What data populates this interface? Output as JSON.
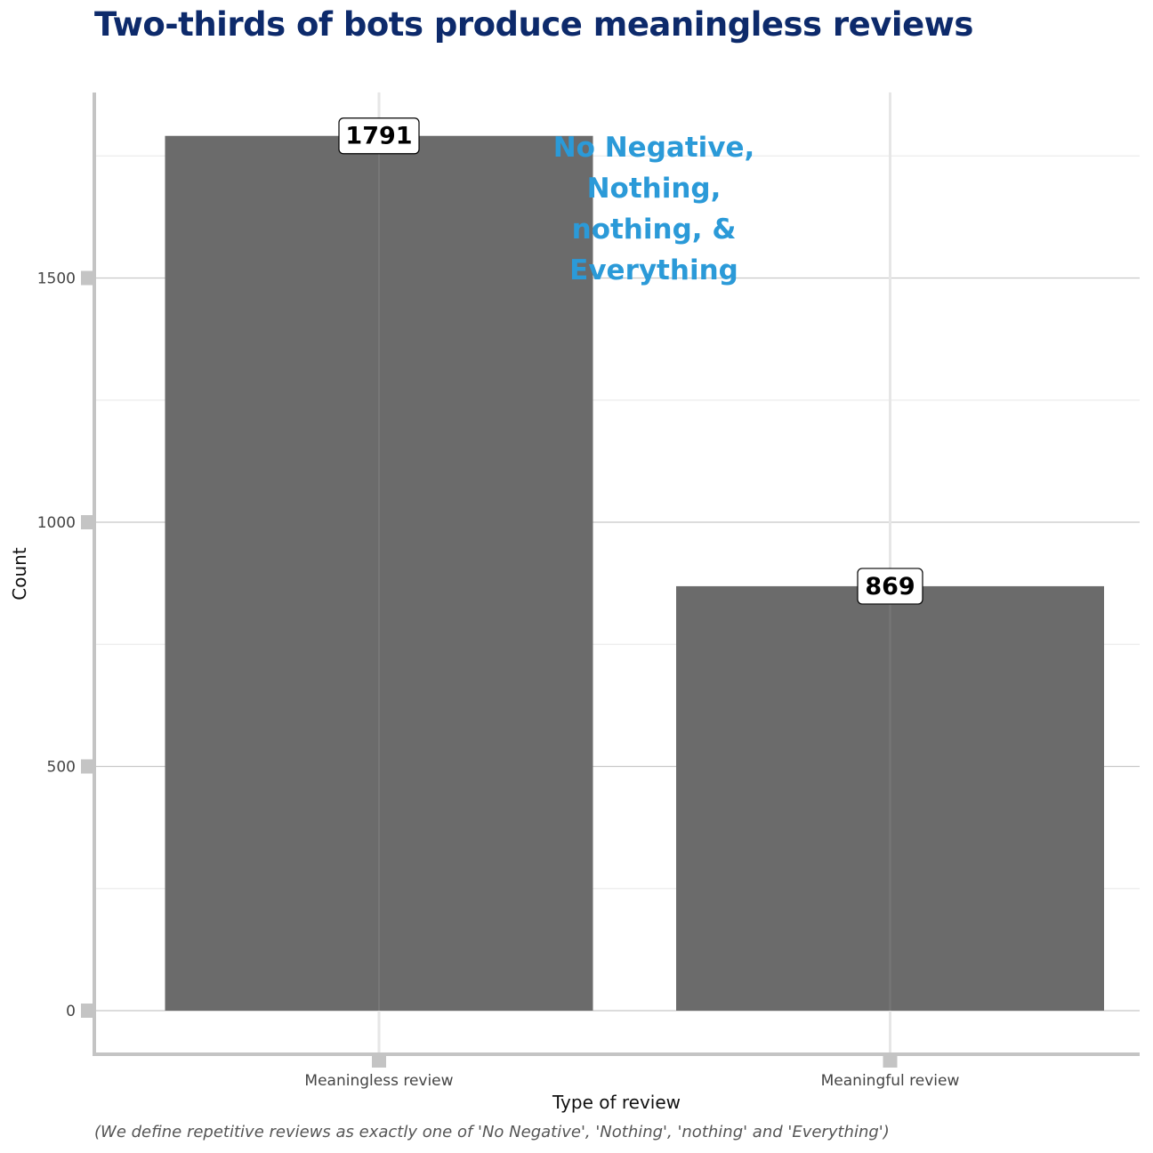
{
  "chart_data": {
    "type": "bar",
    "title": "Two-thirds of bots produce meaningless reviews",
    "xlabel": "Type of review",
    "ylabel": "Count",
    "categories": [
      "Meaningless review",
      "Meaningful review"
    ],
    "values": [
      1791,
      869
    ],
    "data_labels": [
      "1791",
      "869"
    ],
    "ylim": [
      -90,
      1880
    ],
    "yticks": [
      0,
      500,
      1000,
      1500
    ],
    "ytick_labels": [
      "0",
      "500",
      "1000",
      "1500"
    ],
    "grid": true,
    "legend": "none",
    "annotation": {
      "lines": [
        "No Negative,",
        "Nothing,",
        "nothing, &",
        "Everything"
      ],
      "color": "#2b9ad8"
    },
    "caption": "(We define repetitive reviews as exactly one of 'No Negative', 'Nothing', 'nothing' and 'Everything')",
    "colors": {
      "title": "#0d2a6b",
      "bar": "#6b6b6b",
      "annotation": "#2b9ad8",
      "axis": "#c4c4c4"
    }
  }
}
